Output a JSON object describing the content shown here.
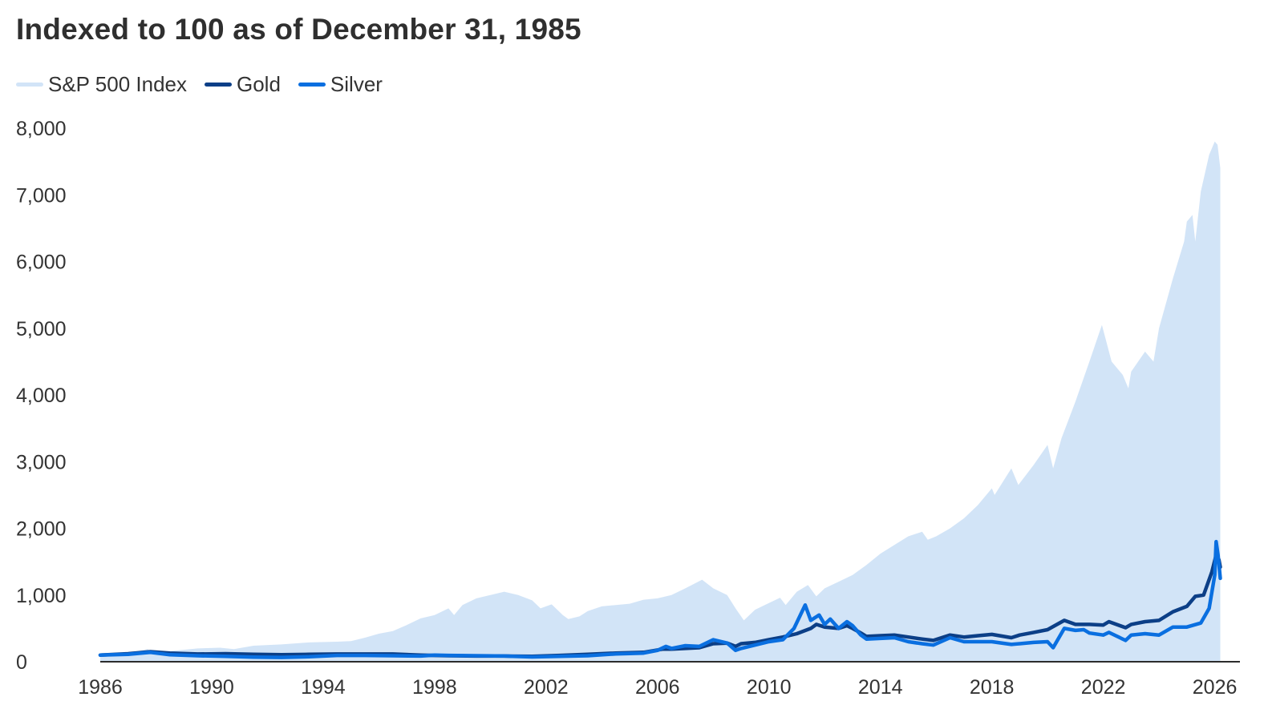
{
  "chart_data": {
    "type": "area",
    "title": "Indexed to 100 as of December 31, 1985",
    "xlabel": "",
    "ylabel": "",
    "xlim": [
      1986,
      2026.3
    ],
    "ylim": [
      0,
      8000
    ],
    "grid": false,
    "legend_position": "top-left",
    "x_ticks": [
      1986,
      1990,
      1994,
      1998,
      2002,
      2006,
      2010,
      2014,
      2018,
      2022,
      2026
    ],
    "x_tick_labels": [
      "1986",
      "1990",
      "1994",
      "1998",
      "2002",
      "2006",
      "2010",
      "2014",
      "2018",
      "2022",
      "2026"
    ],
    "y_ticks": [
      0,
      1000,
      2000,
      3000,
      4000,
      5000,
      6000,
      7000,
      8000
    ],
    "y_tick_labels": [
      "0",
      "1,000",
      "2,000",
      "3,000",
      "4,000",
      "5,000",
      "6,000",
      "7,000",
      "8,000"
    ],
    "series": [
      {
        "name": "S&P 500 Index",
        "kind": "area",
        "color": "#d2e4f7",
        "points": [
          [
            1986.0,
            100
          ],
          [
            1987.0,
            130
          ],
          [
            1987.7,
            190
          ],
          [
            1987.85,
            140
          ],
          [
            1988.5,
            160
          ],
          [
            1989.5,
            200
          ],
          [
            1990.3,
            210
          ],
          [
            1990.8,
            190
          ],
          [
            1991.5,
            240
          ],
          [
            1992.5,
            260
          ],
          [
            1993.5,
            290
          ],
          [
            1994.5,
            300
          ],
          [
            1995.0,
            310
          ],
          [
            1995.5,
            360
          ],
          [
            1996.0,
            420
          ],
          [
            1996.5,
            460
          ],
          [
            1997.0,
            550
          ],
          [
            1997.5,
            650
          ],
          [
            1998.0,
            700
          ],
          [
            1998.5,
            800
          ],
          [
            1998.7,
            700
          ],
          [
            1999.0,
            850
          ],
          [
            1999.5,
            950
          ],
          [
            2000.0,
            1000
          ],
          [
            2000.5,
            1050
          ],
          [
            2001.0,
            1000
          ],
          [
            2001.5,
            920
          ],
          [
            2001.8,
            800
          ],
          [
            2002.2,
            860
          ],
          [
            2002.6,
            700
          ],
          [
            2002.8,
            640
          ],
          [
            2003.2,
            680
          ],
          [
            2003.5,
            760
          ],
          [
            2004.0,
            830
          ],
          [
            2004.5,
            850
          ],
          [
            2005.0,
            870
          ],
          [
            2005.5,
            930
          ],
          [
            2006.0,
            950
          ],
          [
            2006.5,
            1000
          ],
          [
            2007.0,
            1100
          ],
          [
            2007.6,
            1230
          ],
          [
            2008.0,
            1100
          ],
          [
            2008.5,
            1000
          ],
          [
            2008.8,
            800
          ],
          [
            2009.1,
            620
          ],
          [
            2009.5,
            780
          ],
          [
            2010.0,
            880
          ],
          [
            2010.4,
            960
          ],
          [
            2010.6,
            850
          ],
          [
            2011.0,
            1050
          ],
          [
            2011.4,
            1150
          ],
          [
            2011.7,
            980
          ],
          [
            2012.0,
            1100
          ],
          [
            2012.5,
            1200
          ],
          [
            2013.0,
            1300
          ],
          [
            2013.5,
            1450
          ],
          [
            2014.0,
            1620
          ],
          [
            2014.5,
            1750
          ],
          [
            2015.0,
            1880
          ],
          [
            2015.5,
            1950
          ],
          [
            2015.7,
            1830
          ],
          [
            2016.0,
            1880
          ],
          [
            2016.5,
            2000
          ],
          [
            2017.0,
            2150
          ],
          [
            2017.5,
            2350
          ],
          [
            2018.0,
            2600
          ],
          [
            2018.1,
            2500
          ],
          [
            2018.7,
            2900
          ],
          [
            2018.95,
            2650
          ],
          [
            2019.5,
            2950
          ],
          [
            2020.0,
            3250
          ],
          [
            2020.2,
            2900
          ],
          [
            2020.5,
            3350
          ],
          [
            2021.0,
            3900
          ],
          [
            2021.5,
            4500
          ],
          [
            2021.95,
            5050
          ],
          [
            2022.3,
            4500
          ],
          [
            2022.7,
            4300
          ],
          [
            2022.9,
            4100
          ],
          [
            2023.0,
            4350
          ],
          [
            2023.5,
            4650
          ],
          [
            2023.8,
            4500
          ],
          [
            2024.0,
            5000
          ],
          [
            2024.5,
            5750
          ],
          [
            2024.9,
            6300
          ],
          [
            2025.0,
            6600
          ],
          [
            2025.2,
            6700
          ],
          [
            2025.3,
            6300
          ],
          [
            2025.5,
            7050
          ],
          [
            2025.8,
            7600
          ],
          [
            2026.0,
            7800
          ],
          [
            2026.1,
            7750
          ],
          [
            2026.2,
            7400
          ]
        ]
      },
      {
        "name": "Gold",
        "kind": "line",
        "color": "#0c3f87",
        "points": [
          [
            1986.0,
            100
          ],
          [
            1987.0,
            120
          ],
          [
            1987.8,
            150
          ],
          [
            1988.5,
            130
          ],
          [
            1989.5,
            115
          ],
          [
            1990.5,
            120
          ],
          [
            1991.5,
            110
          ],
          [
            1992.5,
            105
          ],
          [
            1993.5,
            110
          ],
          [
            1994.5,
            115
          ],
          [
            1995.5,
            115
          ],
          [
            1996.5,
            115
          ],
          [
            1997.5,
            100
          ],
          [
            1998.5,
            90
          ],
          [
            1999.5,
            85
          ],
          [
            2000.5,
            85
          ],
          [
            2001.5,
            80
          ],
          [
            2002.5,
            95
          ],
          [
            2003.5,
            110
          ],
          [
            2004.5,
            130
          ],
          [
            2005.5,
            140
          ],
          [
            2006.2,
            190
          ],
          [
            2006.5,
            190
          ],
          [
            2007.0,
            200
          ],
          [
            2007.5,
            210
          ],
          [
            2008.0,
            270
          ],
          [
            2008.5,
            280
          ],
          [
            2008.8,
            230
          ],
          [
            2009.0,
            270
          ],
          [
            2009.5,
            290
          ],
          [
            2010.0,
            330
          ],
          [
            2010.5,
            370
          ],
          [
            2011.0,
            420
          ],
          [
            2011.5,
            500
          ],
          [
            2011.7,
            560
          ],
          [
            2012.0,
            520
          ],
          [
            2012.5,
            500
          ],
          [
            2012.8,
            540
          ],
          [
            2013.0,
            500
          ],
          [
            2013.3,
            430
          ],
          [
            2013.5,
            380
          ],
          [
            2014.0,
            390
          ],
          [
            2014.5,
            400
          ],
          [
            2015.0,
            370
          ],
          [
            2015.5,
            340
          ],
          [
            2015.9,
            320
          ],
          [
            2016.5,
            400
          ],
          [
            2017.0,
            370
          ],
          [
            2017.5,
            390
          ],
          [
            2018.0,
            410
          ],
          [
            2018.7,
            360
          ],
          [
            2019.0,
            400
          ],
          [
            2019.5,
            440
          ],
          [
            2020.0,
            480
          ],
          [
            2020.6,
            620
          ],
          [
            2021.0,
            560
          ],
          [
            2021.5,
            560
          ],
          [
            2022.0,
            550
          ],
          [
            2022.2,
            600
          ],
          [
            2022.8,
            510
          ],
          [
            2023.0,
            560
          ],
          [
            2023.5,
            600
          ],
          [
            2024.0,
            620
          ],
          [
            2024.5,
            750
          ],
          [
            2025.0,
            830
          ],
          [
            2025.3,
            980
          ],
          [
            2025.6,
            1000
          ],
          [
            2025.9,
            1350
          ],
          [
            2026.05,
            1600
          ],
          [
            2026.15,
            1530
          ],
          [
            2026.2,
            1420
          ]
        ]
      },
      {
        "name": "Silver",
        "kind": "line",
        "color": "#0a6fe0",
        "points": [
          [
            1986.0,
            100
          ],
          [
            1987.0,
            110
          ],
          [
            1987.8,
            140
          ],
          [
            1988.5,
            105
          ],
          [
            1989.5,
            90
          ],
          [
            1990.5,
            80
          ],
          [
            1991.5,
            70
          ],
          [
            1992.5,
            65
          ],
          [
            1993.5,
            75
          ],
          [
            1994.5,
            95
          ],
          [
            1995.5,
            95
          ],
          [
            1996.5,
            90
          ],
          [
            1997.5,
            85
          ],
          [
            1998.0,
            100
          ],
          [
            1998.5,
            95
          ],
          [
            1999.5,
            90
          ],
          [
            2000.5,
            85
          ],
          [
            2001.5,
            72
          ],
          [
            2002.5,
            80
          ],
          [
            2003.5,
            90
          ],
          [
            2004.5,
            118
          ],
          [
            2005.5,
            130
          ],
          [
            2006.0,
            170
          ],
          [
            2006.3,
            230
          ],
          [
            2006.5,
            200
          ],
          [
            2007.0,
            240
          ],
          [
            2007.5,
            230
          ],
          [
            2008.0,
            330
          ],
          [
            2008.5,
            280
          ],
          [
            2008.8,
            170
          ],
          [
            2009.0,
            200
          ],
          [
            2009.5,
            250
          ],
          [
            2010.0,
            300
          ],
          [
            2010.5,
            330
          ],
          [
            2010.9,
            500
          ],
          [
            2011.3,
            850
          ],
          [
            2011.5,
            620
          ],
          [
            2011.8,
            700
          ],
          [
            2012.0,
            560
          ],
          [
            2012.2,
            640
          ],
          [
            2012.5,
            500
          ],
          [
            2012.8,
            600
          ],
          [
            2013.0,
            540
          ],
          [
            2013.3,
            400
          ],
          [
            2013.5,
            340
          ],
          [
            2014.0,
            350
          ],
          [
            2014.5,
            360
          ],
          [
            2015.0,
            300
          ],
          [
            2015.5,
            270
          ],
          [
            2015.9,
            250
          ],
          [
            2016.5,
            360
          ],
          [
            2017.0,
            300
          ],
          [
            2017.5,
            300
          ],
          [
            2018.0,
            300
          ],
          [
            2018.7,
            260
          ],
          [
            2019.0,
            270
          ],
          [
            2019.5,
            290
          ],
          [
            2020.0,
            300
          ],
          [
            2020.2,
            210
          ],
          [
            2020.6,
            500
          ],
          [
            2021.0,
            470
          ],
          [
            2021.3,
            480
          ],
          [
            2021.5,
            430
          ],
          [
            2022.0,
            400
          ],
          [
            2022.2,
            440
          ],
          [
            2022.8,
            320
          ],
          [
            2023.0,
            400
          ],
          [
            2023.5,
            420
          ],
          [
            2024.0,
            400
          ],
          [
            2024.5,
            520
          ],
          [
            2025.0,
            520
          ],
          [
            2025.5,
            580
          ],
          [
            2025.8,
            800
          ],
          [
            2026.0,
            1300
          ],
          [
            2026.05,
            1800
          ],
          [
            2026.12,
            1600
          ],
          [
            2026.2,
            1250
          ]
        ]
      }
    ]
  }
}
